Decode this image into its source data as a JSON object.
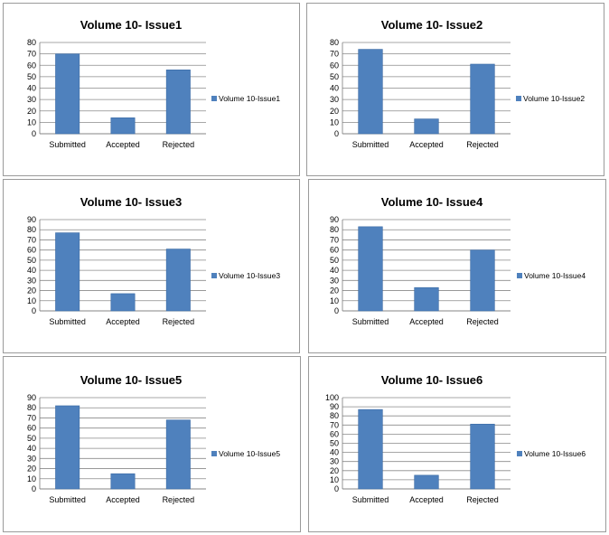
{
  "colors": {
    "bar": "#4F81BD",
    "bar_edge": "#3A6AA4"
  },
  "chart_data": [
    {
      "type": "bar",
      "title": "Volume 10- Issue1",
      "categories": [
        "Submitted",
        "Accepted",
        "Rejected"
      ],
      "series": [
        {
          "name": "Volume 10-Issue1",
          "values": [
            70,
            14,
            56
          ]
        }
      ],
      "ylim": [
        0,
        80
      ],
      "yticks": [
        0,
        10,
        20,
        30,
        40,
        50,
        60,
        70,
        80
      ],
      "grid": true,
      "legend": "right"
    },
    {
      "type": "bar",
      "title": "Volume 10- Issue2",
      "categories": [
        "Submitted",
        "Accepted",
        "Rejected"
      ],
      "series": [
        {
          "name": "Volume 10-Issue2",
          "values": [
            74,
            13,
            61
          ]
        }
      ],
      "ylim": [
        0,
        80
      ],
      "yticks": [
        0,
        10,
        20,
        30,
        40,
        50,
        60,
        70,
        80
      ],
      "grid": true,
      "legend": "right"
    },
    {
      "type": "bar",
      "title": "Volume 10- Issue3",
      "categories": [
        "Submitted",
        "Accepted",
        "Rejected"
      ],
      "series": [
        {
          "name": "Volume 10-Issue3",
          "values": [
            77,
            17,
            61
          ]
        }
      ],
      "ylim": [
        0,
        90
      ],
      "yticks": [
        0,
        10,
        20,
        30,
        40,
        50,
        60,
        70,
        80,
        90
      ],
      "grid": true,
      "legend": "right"
    },
    {
      "type": "bar",
      "title": "Volume 10- Issue4",
      "categories": [
        "Submitted",
        "Accepted",
        "Rejected"
      ],
      "series": [
        {
          "name": "Volume 10-Issue4",
          "values": [
            83,
            23,
            60
          ]
        }
      ],
      "ylim": [
        0,
        90
      ],
      "yticks": [
        0,
        10,
        20,
        30,
        40,
        50,
        60,
        70,
        80,
        90
      ],
      "grid": true,
      "legend": "right"
    },
    {
      "type": "bar",
      "title": "Volume 10- Issue5",
      "categories": [
        "Submitted",
        "Accepted",
        "Rejected"
      ],
      "series": [
        {
          "name": "Volume 10-Issue5",
          "values": [
            82,
            15,
            68
          ]
        }
      ],
      "ylim": [
        0,
        90
      ],
      "yticks": [
        0,
        10,
        20,
        30,
        40,
        50,
        60,
        70,
        80,
        90
      ],
      "grid": true,
      "legend": "right"
    },
    {
      "type": "bar",
      "title": "Volume 10- Issue6",
      "categories": [
        "Submitted",
        "Accepted",
        "Rejected"
      ],
      "series": [
        {
          "name": "Volume 10-Issue6",
          "values": [
            87,
            15,
            71
          ]
        }
      ],
      "ylim": [
        0,
        100
      ],
      "yticks": [
        0,
        10,
        20,
        30,
        40,
        50,
        60,
        70,
        80,
        90,
        100
      ],
      "grid": true,
      "legend": "right"
    }
  ]
}
